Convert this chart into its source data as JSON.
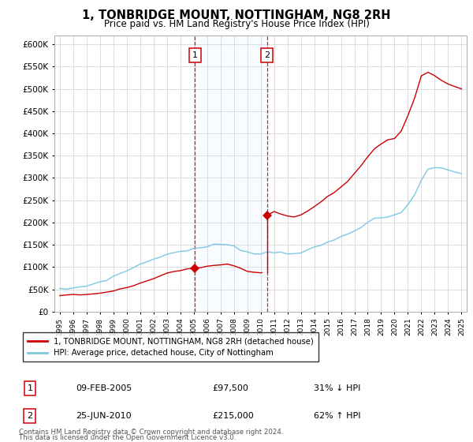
{
  "title": "1, TONBRIDGE MOUNT, NOTTINGHAM, NG8 2RH",
  "subtitle": "Price paid vs. HM Land Registry's House Price Index (HPI)",
  "legend_line1": "1, TONBRIDGE MOUNT, NOTTINGHAM, NG8 2RH (detached house)",
  "legend_line2": "HPI: Average price, detached house, City of Nottingham",
  "table_row1": [
    "1",
    "09-FEB-2005",
    "£97,500",
    "31% ↓ HPI"
  ],
  "table_row2": [
    "2",
    "25-JUN-2010",
    "£215,000",
    "62% ↑ HPI"
  ],
  "footnote": "Contains HM Land Registry data © Crown copyright and database right 2024.\nThis data is licensed under the Open Government Licence v3.0.",
  "sale1_date": 2005.1,
  "sale1_price": 97500,
  "sale2_date": 2010.48,
  "sale2_price": 215000,
  "hpi_color": "#7ec8e3",
  "sale_color": "#cc0000",
  "background_color": "#ffffff",
  "shading_color": "#ddeeff",
  "ylim_min": 0,
  "ylim_max": 620000,
  "xlim_min": 1994.6,
  "xlim_max": 2025.4,
  "hpi_years": [
    1995,
    1995.5,
    1996,
    1996.5,
    1997,
    1997.5,
    1998,
    1998.5,
    1999,
    1999.5,
    2000,
    2000.5,
    2001,
    2001.5,
    2002,
    2002.5,
    2003,
    2003.5,
    2004,
    2004.5,
    2005,
    2005.5,
    2006,
    2006.5,
    2007,
    2007.5,
    2008,
    2008.5,
    2009,
    2009.5,
    2010,
    2010.5,
    2011,
    2011.5,
    2012,
    2012.5,
    2013,
    2013.5,
    2014,
    2014.5,
    2015,
    2015.5,
    2016,
    2016.5,
    2017,
    2017.5,
    2018,
    2018.5,
    2019,
    2019.5,
    2020,
    2020.5,
    2021,
    2021.5,
    2022,
    2022.5,
    2023,
    2023.5,
    2024,
    2024.5,
    2025
  ],
  "hpi_vals": [
    50000,
    51000,
    53000,
    55000,
    58000,
    62000,
    67000,
    72000,
    78000,
    85000,
    92000,
    99000,
    106000,
    112000,
    118000,
    124000,
    128000,
    132000,
    135000,
    138000,
    140000,
    143000,
    146000,
    149000,
    151000,
    152000,
    148000,
    140000,
    133000,
    130000,
    130000,
    133000,
    134000,
    133000,
    132000,
    131000,
    133000,
    137000,
    143000,
    149000,
    155000,
    161000,
    168000,
    175000,
    183000,
    191000,
    200000,
    207000,
    210000,
    213000,
    215000,
    222000,
    240000,
    262000,
    295000,
    320000,
    325000,
    322000,
    318000,
    312000,
    310000
  ],
  "prop_years_pre": [
    1995,
    1995.5,
    1996,
    1996.5,
    1997,
    1997.5,
    1998,
    1998.5,
    1999,
    1999.5,
    2000,
    2000.5,
    2001,
    2001.5,
    2002,
    2002.5,
    2003,
    2003.5,
    2004,
    2004.5,
    2005.0
  ],
  "prop_vals_pre": [
    37000,
    37500,
    37500,
    37800,
    39000,
    40500,
    42000,
    44000,
    47000,
    50000,
    54000,
    58000,
    63000,
    68000,
    74000,
    80000,
    86000,
    90000,
    93000,
    95500,
    97000
  ],
  "prop_years_between": [
    2005.1,
    2005.5,
    2006,
    2006.5,
    2007,
    2007.5,
    2008,
    2008.5,
    2009,
    2009.5,
    2010.0,
    2010.1
  ],
  "prop_vals_between": [
    97500,
    99000,
    102000,
    104000,
    105000,
    106000,
    102000,
    97000,
    90000,
    88000,
    87000,
    87500
  ],
  "prop_years_post": [
    2010.48,
    2010.6,
    2011,
    2011.5,
    2012,
    2012.5,
    2013,
    2013.5,
    2014,
    2014.5,
    2015,
    2015.5,
    2016,
    2016.5,
    2017,
    2017.5,
    2018,
    2018.5,
    2019,
    2019.5,
    2020,
    2020.5,
    2021,
    2021.5,
    2022,
    2022.5,
    2023,
    2023.5,
    2024,
    2024.5,
    2025
  ],
  "prop_vals_post": [
    215000,
    218000,
    222000,
    218000,
    215000,
    213000,
    218000,
    225000,
    235000,
    248000,
    258000,
    268000,
    278000,
    292000,
    308000,
    328000,
    348000,
    365000,
    375000,
    385000,
    390000,
    405000,
    440000,
    480000,
    530000,
    535000,
    530000,
    520000,
    510000,
    505000,
    500000
  ]
}
